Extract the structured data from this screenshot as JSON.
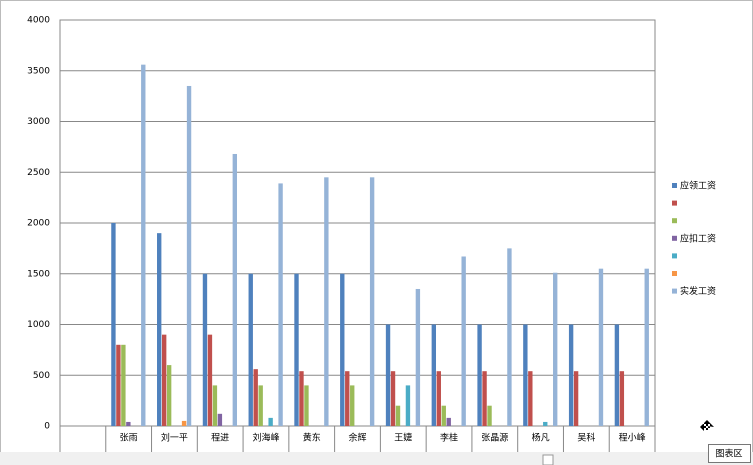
{
  "chart_data": {
    "type": "bar",
    "categories": [
      null,
      "张雨",
      "刘一平",
      "程进",
      "刘海峰",
      "黄东",
      "余辉",
      "王婕",
      "李桂",
      "张晶源",
      "杨凡",
      "吴科",
      "程小峰"
    ],
    "series": [
      {
        "name": "应领工资",
        "color": "#4f81bd",
        "values": [
          null,
          2000,
          1900,
          1500,
          1500,
          1500,
          1500,
          1000,
          1000,
          1000,
          1000,
          1000,
          1000
        ]
      },
      {
        "name": null,
        "color": "#c0504d",
        "values": [
          null,
          800,
          900,
          900,
          560,
          540,
          540,
          540,
          540,
          540,
          540,
          540,
          540
        ]
      },
      {
        "name": null,
        "color": "#9bbb59",
        "values": [
          null,
          800,
          600,
          400,
          400,
          400,
          400,
          200,
          200,
          200,
          0,
          0,
          0
        ]
      },
      {
        "name": "应扣工资",
        "color": "#8064a2",
        "values": [
          null,
          40,
          0,
          120,
          0,
          0,
          0,
          0,
          80,
          0,
          0,
          0,
          0
        ]
      },
      {
        "name": null,
        "color": "#4bacc6",
        "values": [
          null,
          0,
          0,
          0,
          80,
          0,
          0,
          400,
          0,
          0,
          40,
          0,
          0
        ]
      },
      {
        "name": null,
        "color": "#f79646",
        "values": [
          null,
          0,
          50,
          0,
          0,
          0,
          0,
          0,
          0,
          0,
          0,
          0,
          0
        ]
      },
      {
        "name": "实发工资",
        "color": "#95b3d7",
        "values": [
          null,
          3560,
          3350,
          2680,
          2390,
          2450,
          2450,
          1350,
          1670,
          1750,
          1510,
          1550,
          1550
        ]
      }
    ],
    "ylim": [
      0,
      4000
    ],
    "yticks": [
      0,
      500,
      1000,
      1500,
      2000,
      2500,
      3000,
      3500,
      4000
    ],
    "grid": true,
    "legend": "right"
  },
  "tooltip": "图表区"
}
